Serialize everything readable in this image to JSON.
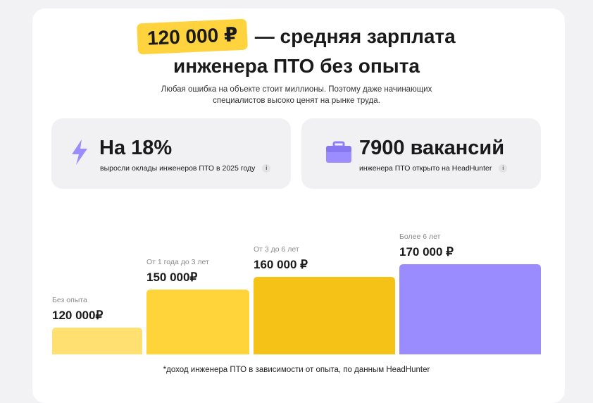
{
  "headline": {
    "highlight": "120 000 ₽",
    "line1_rest": "— средняя зарплата",
    "line2": "инженера ПТО без опыта"
  },
  "subtitle": {
    "line1": "Любая ошибка на объекте стоит миллионы. Поэтому даже начинающих",
    "line2": "специалистов высоко ценят на рынке труда."
  },
  "stats": [
    {
      "value": "На 18%",
      "caption": "выросли оклады инженеров ПТО в 2025 году",
      "icon": "lightning-icon",
      "info": "i"
    },
    {
      "value": "7900 вакансий",
      "caption": "инженера ПТО открыто на HeadHunter",
      "icon": "briefcase-icon",
      "info": "i"
    }
  ],
  "colors": {
    "accent_yellow": "#ffd33d",
    "icon_purple": "#9b8cff"
  },
  "chart_data": {
    "type": "bar",
    "categories": [
      "Без опыта",
      "От 1 года до 3 лет",
      "От 3 до 6 лет",
      "Более 6 лет"
    ],
    "values": [
      120000,
      150000,
      160000,
      170000
    ],
    "value_labels": [
      "120 000₽",
      "150 000₽",
      "160 000 ₽",
      "170 000 ₽"
    ],
    "colors": [
      "#ffe070",
      "#ffd43a",
      "#f5c218",
      "#9a8cff"
    ],
    "ylim": [
      0,
      170000
    ],
    "title": "",
    "xlabel": "",
    "ylabel": "",
    "grid": false
  },
  "footnote": "*доход инженера ПТО в зависимости от опыта, по данным HeadHunter"
}
